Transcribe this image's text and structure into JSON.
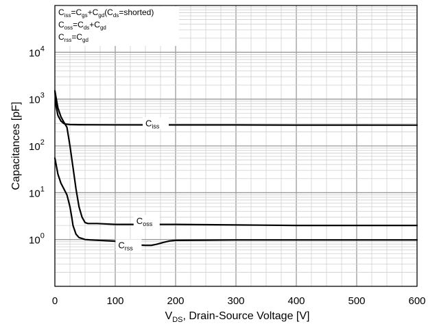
{
  "chart_data": {
    "type": "line",
    "title": "",
    "xlabel": {
      "main": "V",
      "sub": "DS",
      "rest": ", Drain-Source Voltage [V]"
    },
    "ylabel": "Capacitances [pF]",
    "x_scale": "linear",
    "y_scale": "log",
    "xlim": [
      0,
      600
    ],
    "ylim": [
      0.1,
      100000
    ],
    "x_ticks": [
      0,
      100,
      200,
      300,
      400,
      500,
      600
    ],
    "x_tick_labels": [
      "0",
      "100",
      "200",
      "300",
      "400",
      "500",
      "600"
    ],
    "y_ticks": [
      {
        "value": 1,
        "base": "10",
        "exp": "0"
      },
      {
        "value": 10,
        "base": "10",
        "exp": "1"
      },
      {
        "value": 100,
        "base": "10",
        "exp": "2"
      },
      {
        "value": 1000,
        "base": "10",
        "exp": "3"
      },
      {
        "value": 10000,
        "base": "10",
        "exp": "4"
      }
    ],
    "grid": true,
    "legend_placement": "top-left",
    "legend": [
      [
        {
          "t": "C"
        },
        {
          "t": "iss",
          "sub": true
        },
        {
          "t": "=C"
        },
        {
          "t": "gs",
          "sub": true
        },
        {
          "t": "+C"
        },
        {
          "t": "gd",
          "sub": true
        },
        {
          "t": "(C"
        },
        {
          "t": "ds",
          "sub": true
        },
        {
          "t": "=shorted)"
        }
      ],
      [
        {
          "t": "C"
        },
        {
          "t": "oss",
          "sub": true
        },
        {
          "t": "=C"
        },
        {
          "t": "ds",
          "sub": true
        },
        {
          "t": "+C"
        },
        {
          "t": "gd",
          "sub": true
        }
      ],
      [
        {
          "t": "C"
        },
        {
          "t": "rss",
          "sub": true
        },
        {
          "t": "=C"
        },
        {
          "t": "gd",
          "sub": true
        }
      ]
    ],
    "series": [
      {
        "label_main": "C",
        "label_sub": "iss",
        "label_at": [
          150,
          280
        ],
        "x": [
          0,
          2,
          5,
          10,
          15,
          20,
          25,
          40,
          60,
          100,
          200,
          300,
          400,
          500,
          600
        ],
        "y": [
          1500,
          700,
          450,
          340,
          300,
          290,
          285,
          283,
          282,
          281,
          280,
          280,
          279,
          279,
          278
        ]
      },
      {
        "label_main": "C",
        "label_sub": "oss",
        "label_at": [
          135,
          2.3
        ],
        "x": [
          0,
          5,
          10,
          15,
          20,
          25,
          30,
          35,
          40,
          45,
          50,
          55,
          70,
          100,
          200,
          300,
          400,
          500,
          600
        ],
        "y": [
          1500,
          650,
          420,
          320,
          250,
          100,
          35,
          12,
          5,
          3,
          2.3,
          2.2,
          2.2,
          2.1,
          2.1,
          2.05,
          2.0,
          2.0,
          2.0
        ]
      },
      {
        "label_main": "C",
        "label_sub": "rss",
        "label_at": [
          105,
          0.7
        ],
        "x": [
          0,
          5,
          10,
          15,
          20,
          25,
          28,
          30,
          35,
          40,
          45,
          50,
          60,
          80,
          100,
          120,
          130,
          140,
          150,
          160,
          170,
          180,
          190,
          200,
          250,
          300,
          400,
          500,
          600
        ],
        "y": [
          55,
          25,
          16,
          12,
          9,
          5,
          3,
          2,
          1.3,
          1.1,
          1.05,
          1.0,
          0.98,
          0.95,
          0.92,
          0.85,
          0.8,
          0.76,
          0.75,
          0.75,
          0.8,
          0.87,
          0.93,
          0.96,
          0.97,
          0.98,
          0.98,
          0.98,
          0.98
        ]
      }
    ]
  }
}
